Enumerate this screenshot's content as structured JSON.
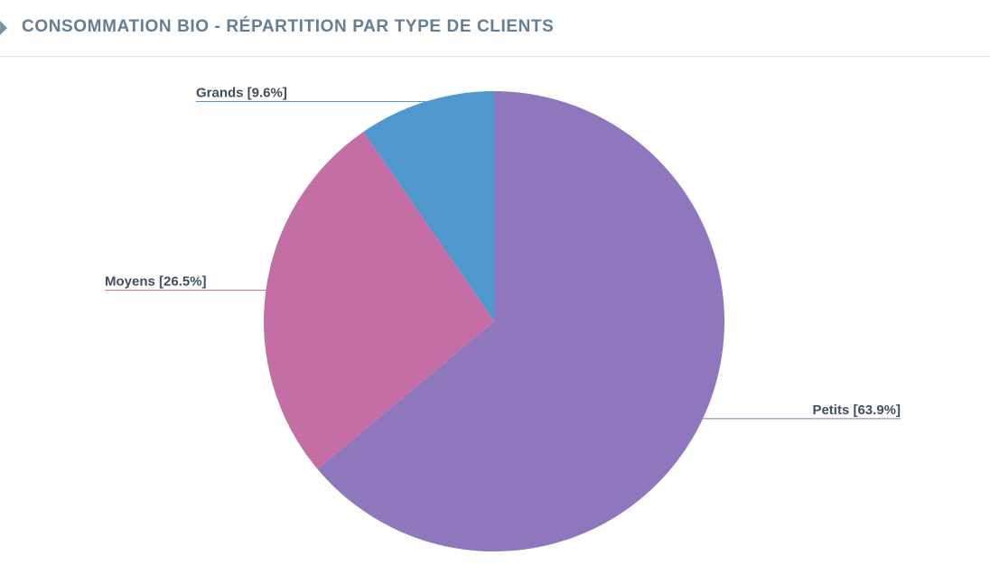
{
  "header": {
    "title": "CONSOMMATION BIO - RÉPARTITION PAR TYPE DE CLIENTS"
  },
  "chart_data": {
    "type": "pie",
    "title": "CONSOMMATION BIO - RÉPARTITION PAR TYPE DE CLIENTS",
    "slices": [
      {
        "name": "Petits",
        "value": 63.9,
        "label": "Petits [63.9%]",
        "color": "#8e77bc",
        "label_side": "right"
      },
      {
        "name": "Moyens",
        "value": 26.5,
        "label": "Moyens [26.5%]",
        "color": "#c46ea5",
        "label_side": "left"
      },
      {
        "name": "Grands",
        "value": 9.6,
        "label": "Grands [9.6%]",
        "color": "#4e98cd",
        "label_side": "left"
      }
    ],
    "start_angle_deg": 0,
    "direction": "clockwise",
    "legend": "none",
    "label_style": "leader-lines"
  }
}
